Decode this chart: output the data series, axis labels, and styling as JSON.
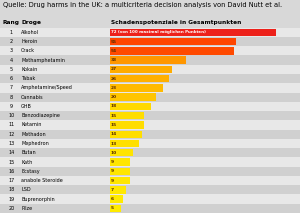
{
  "title": "Quelle: Drug harms in the UK: a multicriteria decision analysis von David Nutt et al.",
  "col1": "Rang",
  "col2": "Droge",
  "col3": "Schadenspotenziale in Gesamtpunkten",
  "drugs": [
    {
      "rank": 1,
      "name": "Alkohol",
      "value": 72,
      "label": "72 (von 100 maximal möglichen Punkten)"
    },
    {
      "rank": 2,
      "name": "Heroin",
      "value": 55,
      "label": "55"
    },
    {
      "rank": 3,
      "name": "Crack",
      "value": 54,
      "label": "54"
    },
    {
      "rank": 4,
      "name": "Methamphetamin",
      "value": 33,
      "label": "33"
    },
    {
      "rank": 5,
      "name": "Kokain",
      "value": 27,
      "label": "27"
    },
    {
      "rank": 6,
      "name": "Tabak",
      "value": 26,
      "label": "26"
    },
    {
      "rank": 7,
      "name": "Amphetamine/Speed",
      "value": 23,
      "label": "23"
    },
    {
      "rank": 8,
      "name": "Cannabis",
      "value": 20,
      "label": "20"
    },
    {
      "rank": 9,
      "name": "GHB",
      "value": 18,
      "label": "18"
    },
    {
      "rank": 10,
      "name": "Benzodiazepine",
      "value": 15,
      "label": "15"
    },
    {
      "rank": 11,
      "name": "Ketamin",
      "value": 15,
      "label": "15"
    },
    {
      "rank": 12,
      "name": "Methadon",
      "value": 14,
      "label": "14"
    },
    {
      "rank": 13,
      "name": "Mephedron",
      "value": 13,
      "label": "13"
    },
    {
      "rank": 14,
      "name": "Butan",
      "value": 10,
      "label": "10"
    },
    {
      "rank": 15,
      "name": "Kath",
      "value": 9,
      "label": "9"
    },
    {
      "rank": 16,
      "name": "Ecstasy",
      "value": 9,
      "label": "9"
    },
    {
      "rank": 17,
      "name": "anabole Steroide",
      "value": 9,
      "label": "9"
    },
    {
      "rank": 18,
      "name": "LSD",
      "value": 7,
      "label": "7"
    },
    {
      "rank": 19,
      "name": "Buprenorphin",
      "value": 6,
      "label": "6"
    },
    {
      "rank": 20,
      "name": "Pilze",
      "value": 5,
      "label": "5"
    }
  ],
  "bg_color": "#d8d8d8",
  "row_colors": [
    "#e8e8e8",
    "#d0d0d0"
  ],
  "bar_xlim": 80,
  "title_fontsize": 4.8,
  "label_fontsize": 3.6,
  "header_fontsize": 4.2,
  "rank_fontsize": 3.5,
  "name_fontsize": 3.5,
  "value_fontsize": 3.2
}
